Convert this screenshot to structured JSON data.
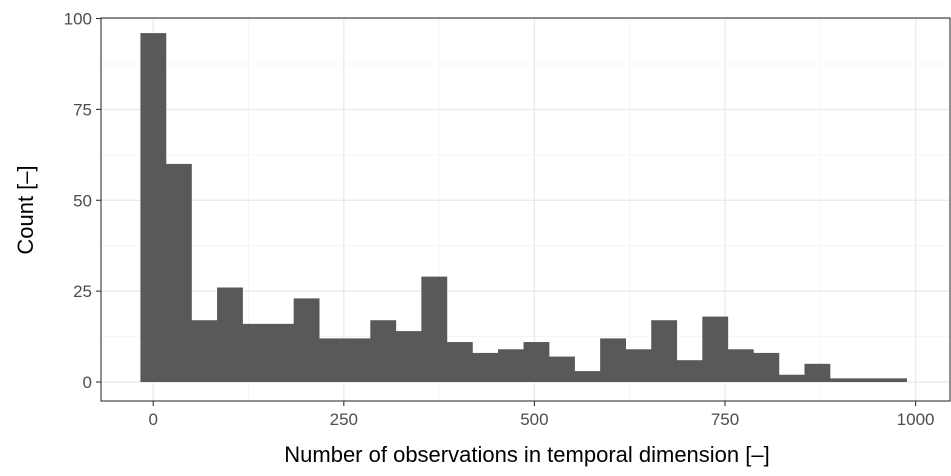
{
  "chart_data": {
    "type": "bar",
    "title": "",
    "xlabel": "Number of observations in temporal dimension [–]",
    "ylabel": "Count [–]",
    "xlim": [
      -65,
      1000
    ],
    "ylim": [
      -5,
      100
    ],
    "xticks": [
      0,
      250,
      500,
      750,
      1000
    ],
    "yticks": [
      0,
      25,
      50,
      75,
      100
    ],
    "xtick_labels": [
      "0",
      "250",
      "500",
      "750",
      "1000"
    ],
    "ytick_labels": [
      "0",
      "25",
      "50",
      "75",
      "100"
    ],
    "grid": true,
    "legend": "none",
    "bin_width": 33.5,
    "bin_start": -16.75,
    "values": [
      96,
      60,
      17,
      26,
      16,
      16,
      23,
      12,
      12,
      17,
      14,
      29,
      11,
      8,
      9,
      11,
      7,
      3,
      12,
      9,
      17,
      6,
      18,
      9,
      8,
      2,
      5,
      1,
      1,
      1
    ],
    "bar_color": "#595959",
    "panel_border_color": "#333333",
    "grid_major_color": "#ebebeb",
    "grid_minor_color": "#f5f5f5"
  }
}
